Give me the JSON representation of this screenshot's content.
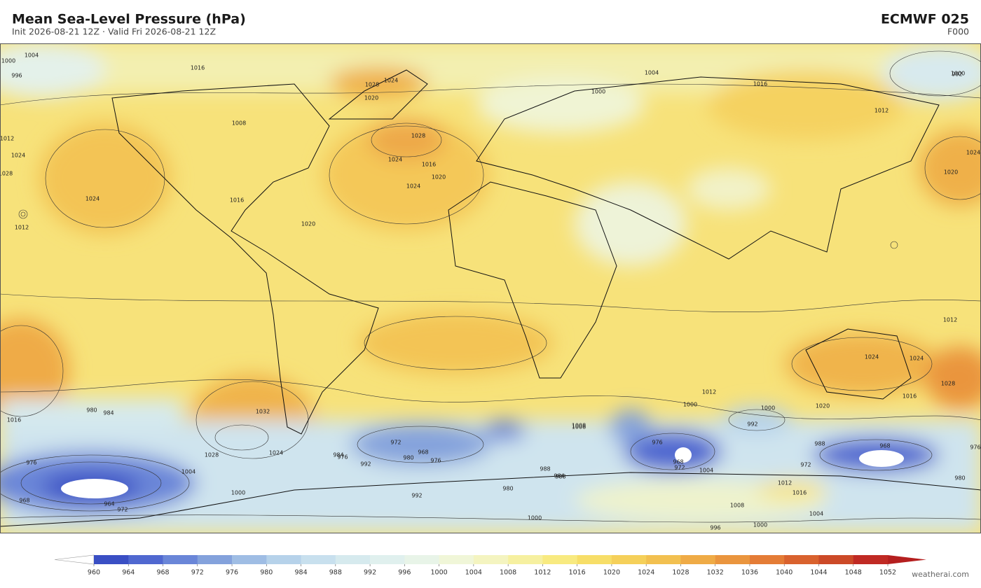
{
  "header": {
    "title": "Mean Sea-Level Pressure  (hPa)",
    "subtitle": "Init 2026-08-21 12Z   ·   Valid Fri 2026-08-21 12Z",
    "model": "ECMWF  025",
    "forecast_hour": "F000"
  },
  "map": {
    "contour_labels": [
      "1004",
      "1000",
      "996",
      "1016",
      "1024",
      "1028",
      "1020",
      "1008",
      "1012",
      "1024",
      "1028",
      "1024",
      "1012",
      "1016",
      "1020",
      "1028",
      "1024",
      "1016",
      "1020",
      "1024",
      "1000",
      "1004",
      "1000",
      "992",
      "1012",
      "1024",
      "1020",
      "1024",
      "1028",
      "1016",
      "1020",
      "1012",
      "1016",
      "1024",
      "1008",
      "1012",
      "1032",
      "1028",
      "1024",
      "1016",
      "980",
      "984",
      "976",
      "972",
      "968",
      "964",
      "1004",
      "1000",
      "984",
      "992",
      "976",
      "972",
      "980",
      "968",
      "976",
      "988",
      "1000",
      "1008",
      "976",
      "972",
      "968",
      "980",
      "992",
      "988",
      "1000",
      "988",
      "984",
      "972",
      "968",
      "976",
      "980",
      "1004",
      "1008",
      "1012",
      "1016",
      "1000",
      "992",
      "996",
      "1000",
      "1004"
    ]
  },
  "colorbar": {
    "ticks": [
      960,
      964,
      968,
      972,
      976,
      980,
      984,
      988,
      992,
      996,
      1000,
      1004,
      1008,
      1012,
      1016,
      1020,
      1024,
      1028,
      1032,
      1036,
      1040,
      1044,
      1048,
      1052
    ],
    "colors": [
      "#3a4fc4",
      "#5068d0",
      "#6a86d8",
      "#84a2dc",
      "#9fbde4",
      "#b6d2ea",
      "#c8e0ee",
      "#d6eaee",
      "#e0f0ee",
      "#e8f4e8",
      "#f0f6d8",
      "#f4f4c0",
      "#f6f0a0",
      "#f8ea80",
      "#f7de68",
      "#f5d05a",
      "#f2c050",
      "#efab46",
      "#ea953e",
      "#e47c36",
      "#d9622e",
      "#cc4a28",
      "#c02a24"
    ],
    "under_color": "#ffffff",
    "over_color": "#b51f1f"
  },
  "footer": {
    "credit": "weatherai.com"
  }
}
